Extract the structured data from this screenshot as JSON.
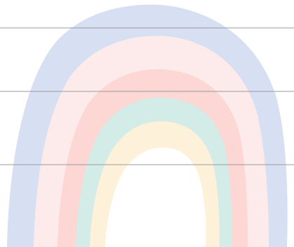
{
  "illustration": {
    "subject": "rainbow",
    "bands": [
      {
        "id": "outer-blue",
        "color": "#d7dff3"
      },
      {
        "id": "pink-light",
        "color": "#fdebec"
      },
      {
        "id": "pink",
        "color": "#fcd7d3"
      },
      {
        "id": "mint",
        "color": "#d3ece8"
      },
      {
        "id": "cream",
        "color": "#fef1d9"
      }
    ],
    "inner_color": "#ffffff",
    "lines_color": "#9a9a9a",
    "background_color": "#ffffff"
  }
}
